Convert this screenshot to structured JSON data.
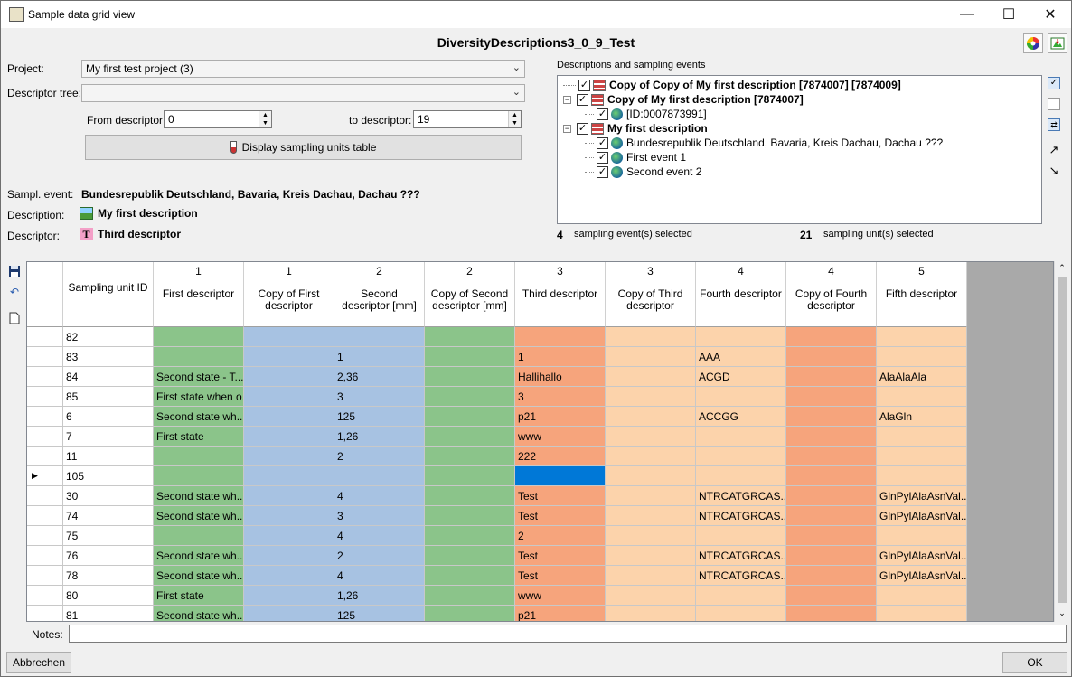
{
  "window": {
    "title": "Sample data grid view"
  },
  "heading": "DiversityDescriptions3_0_9_Test",
  "toolbar_icons": [
    "color-wheel-icon",
    "export-image-icon"
  ],
  "form": {
    "project_label": "Project:",
    "project_value": "My first test project (3)",
    "descriptor_tree_label": "Descriptor tree:",
    "descriptor_tree_value": "",
    "from_descriptor_label": "From descriptor:",
    "from_descriptor_value": "0",
    "to_descriptor_label": "to descriptor:",
    "to_descriptor_value": "19",
    "display_button": "Display sampling units table",
    "sampl_event_label": "Sampl. event:",
    "sampl_event_value": "Bundesrepublik Deutschland, Bavaria, Kreis Dachau, Dachau ???",
    "description_label": "Description:",
    "description_value": "My first description",
    "descriptor_label": "Descriptor:",
    "descriptor_value": "Third descriptor"
  },
  "tree": {
    "group_label": "Descriptions and sampling events",
    "nodes": [
      {
        "text": "Copy of Copy of My first description [7874007] [7874009]",
        "bold": true
      },
      {
        "text": "Copy of My first description [7874007]",
        "bold": true
      },
      {
        "text": "[ID:0007873991]",
        "bold": false
      },
      {
        "text": "My first description",
        "bold": true
      },
      {
        "text": "Bundesrepublik Deutschland, Bavaria, Kreis Dachau, Dachau ???",
        "bold": false
      },
      {
        "text": "First event 1",
        "bold": false
      },
      {
        "text": "Second event 2",
        "bold": false
      }
    ],
    "events_count": "4",
    "events_label": "sampling event(s) selected",
    "units_count": "21",
    "units_label": "sampling unit(s) selected"
  },
  "grid": {
    "columns": [
      {
        "num": "",
        "caption": "Sampling unit ID",
        "color": "#ffffff"
      },
      {
        "num": "1",
        "caption": "First descriptor",
        "color": "#8bc48a"
      },
      {
        "num": "1",
        "caption": "Copy of First descriptor",
        "color": "#a7c2e2"
      },
      {
        "num": "2",
        "caption": "Second descriptor [mm]",
        "color": "#a7c2e2"
      },
      {
        "num": "2",
        "caption": "Copy of Second descriptor [mm]",
        "color": "#8bc48a"
      },
      {
        "num": "3",
        "caption": "Third descriptor",
        "color": "#f6a47c"
      },
      {
        "num": "3",
        "caption": "Copy of Third descriptor",
        "color": "#fcd3ab"
      },
      {
        "num": "4",
        "caption": "Fourth descriptor",
        "color": "#fcd3ab"
      },
      {
        "num": "4",
        "caption": "Copy of Fourth descriptor",
        "color": "#f6a47c"
      },
      {
        "num": "5",
        "caption": "Fifth descriptor",
        "color": "#fcd3ab"
      }
    ],
    "rows": [
      [
        "82",
        "",
        "",
        "",
        "",
        "",
        "",
        "",
        "",
        ""
      ],
      [
        "83",
        "",
        "",
        "1",
        "",
        "1",
        "",
        "AAA",
        "",
        ""
      ],
      [
        "84",
        "Second state - T...",
        "",
        "2,36",
        "",
        "Hallihallo",
        "",
        "ACGD",
        "",
        "AlaAlaAla"
      ],
      [
        "85",
        "First state when o...",
        "",
        "3",
        "",
        "3",
        "",
        "",
        "",
        ""
      ],
      [
        "6",
        "Second state wh...",
        "",
        "125",
        "",
        "p21",
        "",
        "ACCGG",
        "",
        "AlaGln"
      ],
      [
        "7",
        "First state",
        "",
        "1,26",
        "",
        "www",
        "",
        "",
        "",
        ""
      ],
      [
        "11",
        "",
        "",
        "2",
        "",
        "222",
        "",
        "",
        "",
        ""
      ],
      [
        "105",
        "",
        "",
        "",
        "",
        "",
        "",
        "",
        "",
        ""
      ],
      [
        "30",
        "Second state wh...",
        "",
        "4",
        "",
        "Test",
        "",
        "NTRCATGRCAS...",
        "",
        "GlnPylAlaAsnVal..."
      ],
      [
        "74",
        "Second state wh...",
        "",
        "3",
        "",
        "Test",
        "",
        "NTRCATGRCAS...",
        "",
        "GlnPylAlaAsnVal..."
      ],
      [
        "75",
        "",
        "",
        "4",
        "",
        "2",
        "",
        "",
        "",
        ""
      ],
      [
        "76",
        "Second state wh...",
        "",
        "2",
        "",
        "Test",
        "",
        "NTRCATGRCAS...",
        "",
        "GlnPylAlaAsnVal..."
      ],
      [
        "78",
        "Second state wh...",
        "",
        "4",
        "",
        "Test",
        "",
        "NTRCATGRCAS...",
        "",
        "GlnPylAlaAsnVal..."
      ],
      [
        "80",
        "First state",
        "",
        "1,26",
        "",
        "www",
        "",
        "",
        "",
        ""
      ],
      [
        "81",
        "Second state wh...",
        "",
        "125",
        "",
        "p21",
        "",
        "",
        "",
        ""
      ]
    ],
    "current_row_index": 7,
    "selected_cell_color": "#0078d7"
  },
  "notes_label": "Notes:",
  "notes_value": "",
  "cancel_button": "Abbrechen",
  "ok_button": "OK"
}
